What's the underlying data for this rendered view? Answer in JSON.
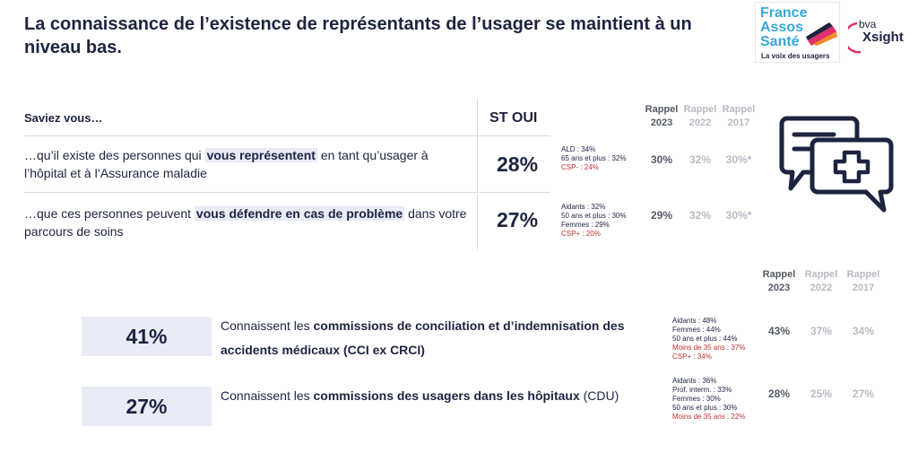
{
  "title": "La connaissance de l’existence de représentants de l’usager se maintient à un niveau bas.",
  "logos": {
    "fas_line1": "France",
    "fas_line2": "Assos",
    "fas_line3": "Santé",
    "fas_tagline": "La voix des usagers",
    "bva_top": "bva",
    "bva_bottom": "Xsight"
  },
  "table1": {
    "question_header": "Saviez vous…",
    "st_header": "ST OUI",
    "rappel_headers": [
      {
        "line1": "Rappel",
        "line2": "2023"
      },
      {
        "line1": "Rappel",
        "line2": "2022"
      },
      {
        "line1": "Rappel",
        "line2": "2017"
      }
    ],
    "rows": [
      {
        "text_before": "…qu’il existe des personnes qui ",
        "text_bold": "vous représentent",
        "text_after": " en tant qu’usager à l’hôpital et à l’Assurance maladie",
        "st_value": "28%",
        "details": [
          "ALD : 34%",
          "65 ans et plus : 32%"
        ],
        "details_red": [
          "CSP- : 24%"
        ],
        "rappel_values": [
          "30%",
          "32%",
          "30%*"
        ]
      },
      {
        "text_before": "…que ces personnes peuvent ",
        "text_bold": "vous défendre en cas de problème",
        "text_after": " dans votre parcours de soins",
        "st_value": "27%",
        "details": [
          "Aidants : 32%",
          "50 ans et plus : 30%",
          "Femmes : 29%"
        ],
        "details_red": [
          "CSP+ : 20%"
        ],
        "rappel_values": [
          "29%",
          "32%",
          "30%*"
        ]
      }
    ]
  },
  "table2": {
    "rappel_headers": [
      {
        "line1": "Rappel",
        "line2": "2023"
      },
      {
        "line1": "Rappel",
        "line2": "2022"
      },
      {
        "line1": "Rappel",
        "line2": "2017"
      }
    ],
    "rows": [
      {
        "value": "41%",
        "text_before": "Connaissent les ",
        "text_bold": "commissions de conciliation et d’indemnisation des accidents médicaux (CCI ex CRCI)",
        "details": [
          "Aidants : 48%",
          "Femmes : 44%",
          "50 ans et plus : 44%"
        ],
        "details_red": [
          "Moins de 35 ans : 37%",
          "CSP+ : 34%"
        ],
        "rappel_values": [
          "43%",
          "37%",
          "34%"
        ]
      },
      {
        "value": "27%",
        "text_before": "Connaissent les ",
        "text_bold": "commissions des usagers dans les hôpitaux",
        "text_after": " (CDU)",
        "details": [
          "Aidants : 36%",
          "Prof. interm. : 33%",
          "Femmes : 30%",
          "50 ans et plus : 30%"
        ],
        "details_red": [
          "Moins de 35 ans : 22%"
        ],
        "rappel_values": [
          "28%",
          "25%",
          "27%"
        ]
      }
    ]
  },
  "colors": {
    "text_dark": "#1d2440",
    "highlight_bg": "#e9ebf6",
    "rappel_dark": "#555a66",
    "rappel_light": "#b7bac2",
    "negative_red": "#c03030",
    "logo_blue": "#3aa6d8",
    "logo_pink": "#e0306e",
    "logo_orange": "#f08a2c"
  },
  "icon": "medical-chat-bubbles-icon"
}
